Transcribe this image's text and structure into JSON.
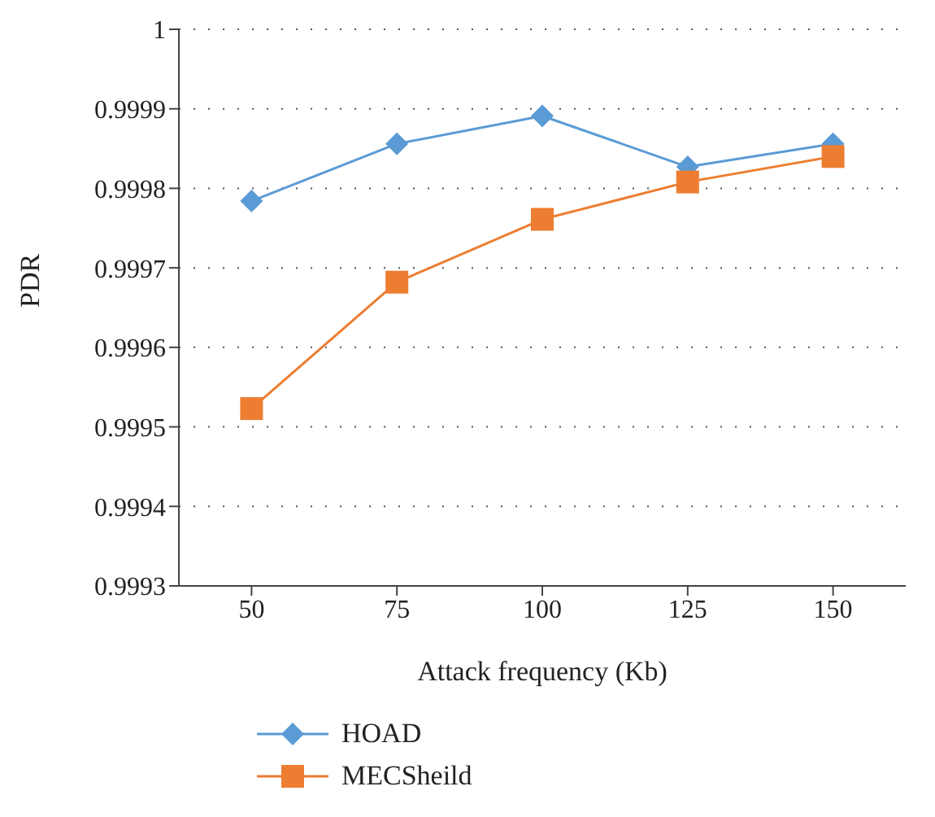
{
  "chart_data": {
    "type": "line",
    "xlabel": "Attack frequency (Kb)",
    "ylabel": "PDR",
    "categories": [
      "50",
      "75",
      "100",
      "125",
      "150"
    ],
    "series": [
      {
        "name": "HOAD",
        "color": "#5b9bd5",
        "marker": "diamond",
        "values": [
          0.999784,
          0.999856,
          0.999891,
          0.999827,
          0.999856
        ]
      },
      {
        "name": "MECSheild",
        "color": "#ed7d31",
        "marker": "square",
        "values": [
          0.999523,
          0.999682,
          0.999761,
          0.999808,
          0.99984
        ]
      }
    ],
    "ylim": [
      0.9993,
      1
    ],
    "yticks": [
      0.9993,
      0.9994,
      0.9995,
      0.9996,
      0.9997,
      0.9998,
      0.9999,
      1
    ],
    "grid": "y",
    "legend": "bottom",
    "line_style": "solid"
  }
}
